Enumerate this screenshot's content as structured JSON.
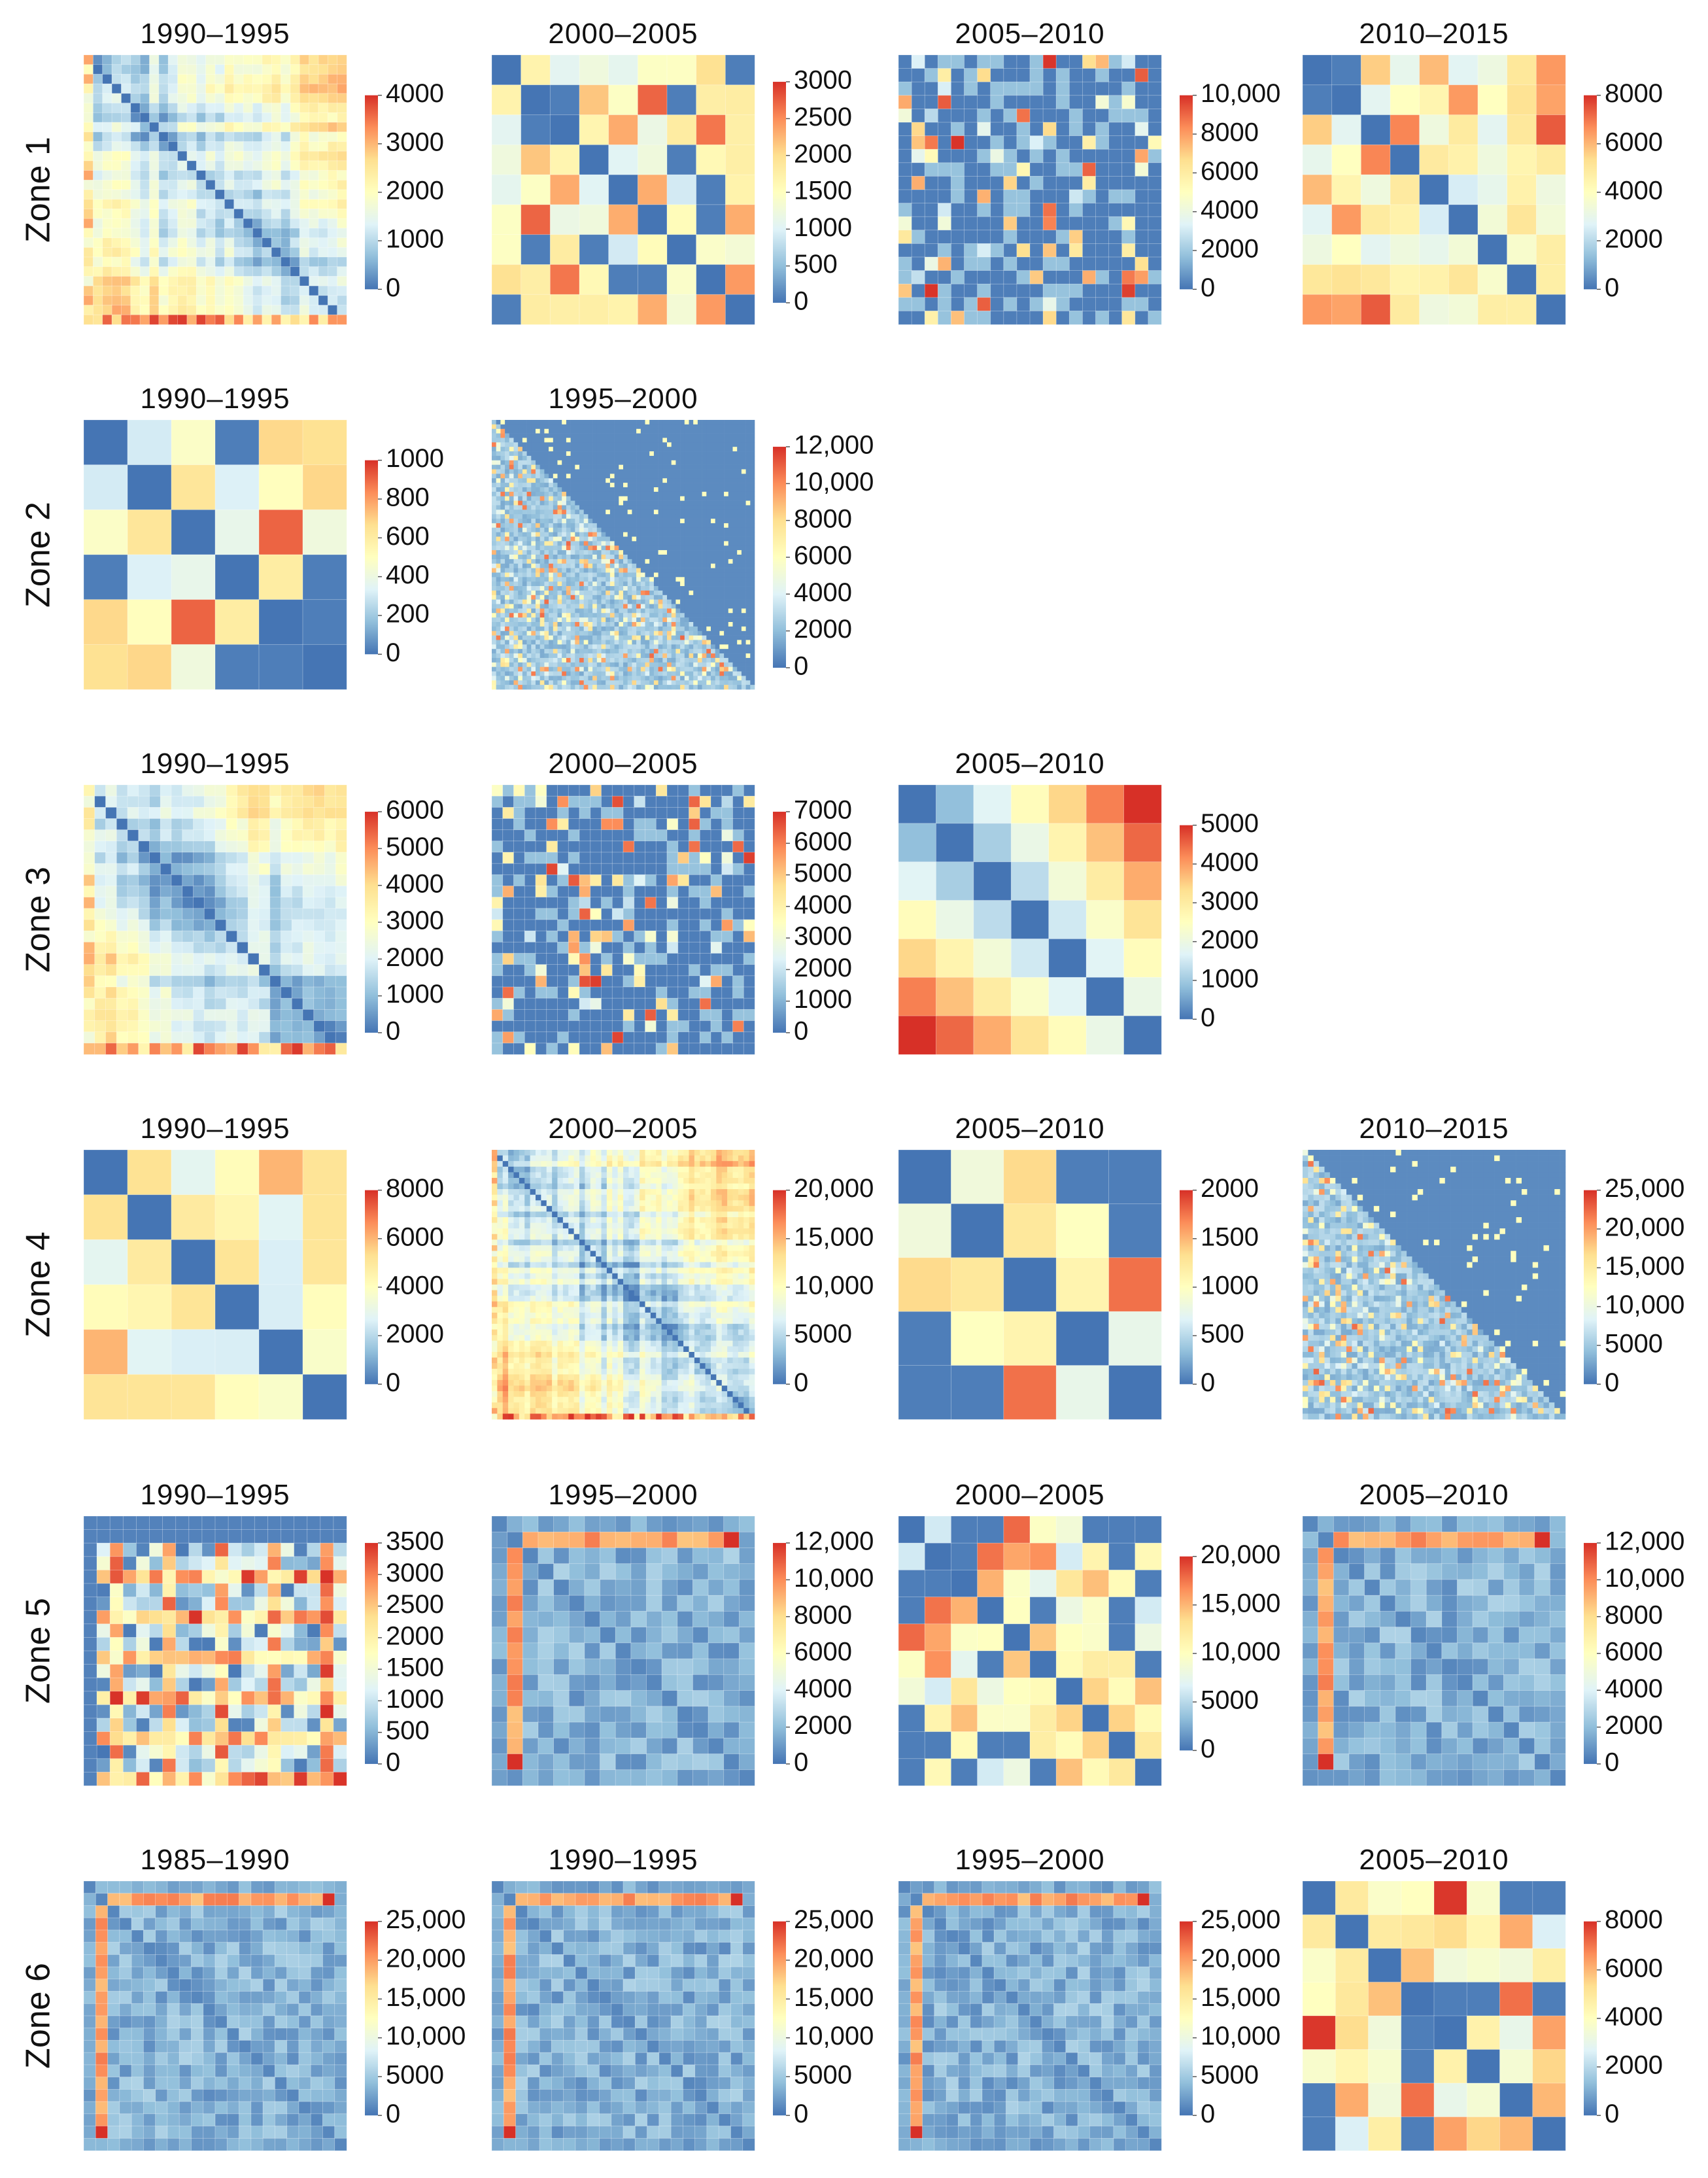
{
  "chart_data": {
    "type": "heatmap",
    "colorscale": [
      "#4575b4",
      "#91bfdb",
      "#e0f3f8",
      "#ffffbf",
      "#fee090",
      "#fc8d59",
      "#d73027"
    ],
    "zones": [
      {
        "label": "Zone 1",
        "panels": [
          {
            "title": "1990–1995",
            "grid": 28,
            "pattern": "bands",
            "seed": 11,
            "ticks": [
              "4000",
              "3000",
              "2000",
              "1000",
              "0"
            ]
          },
          {
            "title": "2000–2005",
            "grid": 9,
            "pattern": "blocks",
            "seed": 12,
            "ticks": [
              "3000",
              "2500",
              "2000",
              "1500",
              "1000",
              "500",
              "0"
            ]
          },
          {
            "title": "2005–2010",
            "grid": 20,
            "pattern": "sparse",
            "seed": 13,
            "ticks": [
              "10,000",
              "8000",
              "6000",
              "4000",
              "2000",
              "0"
            ]
          },
          {
            "title": "2010–2015",
            "grid": 9,
            "pattern": "blocks",
            "seed": 14,
            "ticks": [
              "8000",
              "6000",
              "4000",
              "2000",
              "0"
            ]
          }
        ]
      },
      {
        "label": "Zone 2",
        "panels": [
          {
            "title": "1990–1995",
            "grid": 6,
            "pattern": "blocks",
            "seed": 21,
            "ticks": [
              "1000",
              "800",
              "600",
              "400",
              "200",
              "0"
            ]
          },
          {
            "title": "1995–2000",
            "grid": 60,
            "pattern": "triangle",
            "seed": 22,
            "ticks": [
              "12,000",
              "10,000",
              "8000",
              "6000",
              "4000",
              "2000",
              "0"
            ]
          }
        ]
      },
      {
        "label": "Zone 3",
        "panels": [
          {
            "title": "1990–1995",
            "grid": 24,
            "pattern": "bands",
            "seed": 31,
            "ticks": [
              "6000",
              "5000",
              "4000",
              "3000",
              "2000",
              "1000",
              "0"
            ]
          },
          {
            "title": "2000–2005",
            "grid": 24,
            "pattern": "sparse",
            "seed": 32,
            "ticks": [
              "7000",
              "6000",
              "5000",
              "4000",
              "3000",
              "2000",
              "1000",
              "0"
            ]
          },
          {
            "title": "2005–2010",
            "grid": 7,
            "pattern": "gradient",
            "seed": 33,
            "ticks": [
              "5000",
              "4000",
              "3000",
              "2000",
              "1000",
              "0"
            ]
          }
        ]
      },
      {
        "label": "Zone 4",
        "panels": [
          {
            "title": "1990–1995",
            "grid": 6,
            "pattern": "blocks",
            "seed": 41,
            "ticks": [
              "8000",
              "6000",
              "4000",
              "2000",
              "0"
            ]
          },
          {
            "title": "2000–2005",
            "grid": 48,
            "pattern": "bands",
            "seed": 42,
            "ticks": [
              "20,000",
              "15,000",
              "10,000",
              "5000",
              "0"
            ]
          },
          {
            "title": "2005–2010",
            "grid": 5,
            "pattern": "blocks",
            "seed": 43,
            "ticks": [
              "2000",
              "1500",
              "1000",
              "500",
              "0"
            ]
          },
          {
            "title": "2010–2015",
            "grid": 48,
            "pattern": "triangle",
            "seed": 44,
            "ticks": [
              "25,000",
              "20,000",
              "15,000",
              "10,000",
              "5000",
              "0"
            ]
          }
        ]
      },
      {
        "label": "Zone 5",
        "panels": [
          {
            "title": "1990–1995",
            "grid": 20,
            "pattern": "checker",
            "seed": 51,
            "ticks": [
              "3500",
              "3000",
              "2500",
              "2000",
              "1500",
              "1000",
              "500",
              "0"
            ]
          },
          {
            "title": "1995–2000",
            "grid": 17,
            "pattern": "frame",
            "seed": 52,
            "ticks": [
              "12,000",
              "10,000",
              "8000",
              "6000",
              "4000",
              "2000",
              "0"
            ]
          },
          {
            "title": "2000–2005",
            "grid": 10,
            "pattern": "blocks",
            "seed": 53,
            "ticks": [
              "20,000",
              "15,000",
              "10,000",
              "5000",
              "0"
            ]
          },
          {
            "title": "2005–2010",
            "grid": 17,
            "pattern": "frame",
            "seed": 54,
            "ticks": [
              "12,000",
              "10,000",
              "8000",
              "6000",
              "4000",
              "2000",
              "0"
            ]
          }
        ]
      },
      {
        "label": "Zone 6",
        "panels": [
          {
            "title": "1985–1990",
            "grid": 22,
            "pattern": "frame",
            "seed": 61,
            "ticks": [
              "25,000",
              "20,000",
              "15,000",
              "10,000",
              "5000",
              "0"
            ]
          },
          {
            "title": "1990–1995",
            "grid": 22,
            "pattern": "frame",
            "seed": 62,
            "ticks": [
              "25,000",
              "20,000",
              "15,000",
              "10,000",
              "5000",
              "0"
            ]
          },
          {
            "title": "1995–2000",
            "grid": 22,
            "pattern": "frame",
            "seed": 63,
            "ticks": [
              "25,000",
              "20,000",
              "15,000",
              "10,000",
              "5000",
              "0"
            ]
          },
          {
            "title": "2005–2010",
            "grid": 8,
            "pattern": "blocks",
            "seed": 64,
            "ticks": [
              "8000",
              "6000",
              "4000",
              "2000",
              "0"
            ]
          }
        ]
      }
    ]
  }
}
